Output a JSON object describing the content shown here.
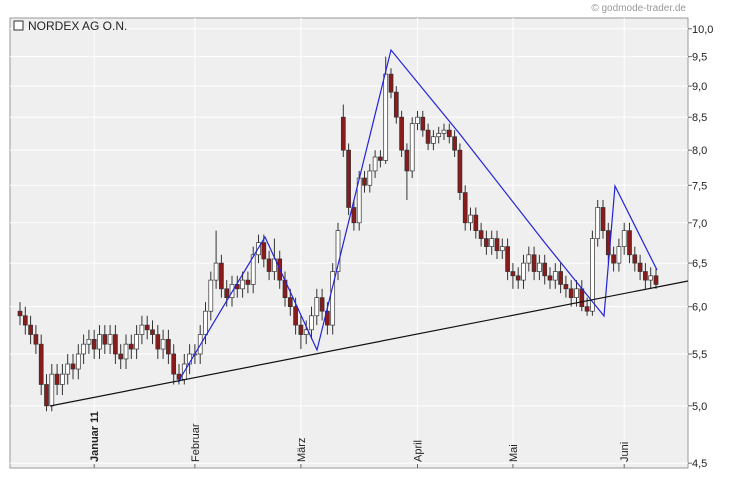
{
  "chart_data": {
    "type": "candlestick",
    "title": "NORDEX AG O.N.",
    "source": "© godmode-trader.de",
    "log_scale": true,
    "grid": true,
    "up_color": "#ffffff",
    "down_color": "#8b1a1a",
    "open": [
      5.95,
      5.9,
      5.8,
      5.7,
      5.6,
      5.2,
      5.0,
      5.3,
      5.2,
      5.3,
      5.4,
      5.35,
      5.5,
      5.6,
      5.65,
      5.55,
      5.7,
      5.6,
      5.7,
      5.5,
      5.45,
      5.6,
      5.55,
      5.7,
      5.8,
      5.75,
      5.7,
      5.55,
      5.65,
      5.5,
      5.3,
      5.25,
      5.4,
      5.5,
      5.5,
      5.7,
      5.95,
      6.3,
      6.5,
      6.2,
      6.1,
      6.25,
      6.2,
      6.3,
      6.25,
      6.6,
      6.75,
      6.55,
      6.4,
      6.55,
      6.3,
      6.1,
      6.0,
      5.8,
      5.7,
      5.75,
      5.9,
      6.1,
      5.95,
      5.8,
      6.4,
      8.5,
      8.0,
      7.2,
      7.0,
      7.6,
      7.5,
      7.7,
      7.9,
      7.85,
      9.2,
      8.9,
      8.5,
      8.0,
      7.7,
      8.4,
      8.5,
      8.3,
      8.1,
      8.2,
      8.25,
      8.3,
      8.2,
      8.0,
      7.4,
      7.0,
      7.1,
      6.9,
      6.8,
      6.7,
      6.8,
      6.65,
      6.7,
      6.4,
      6.35,
      6.3,
      6.5,
      6.6,
      6.4,
      6.5,
      6.35,
      6.3,
      6.4,
      6.25,
      6.2,
      6.1,
      6.2,
      6.0,
      5.95,
      6.8,
      7.2,
      6.9,
      6.6,
      6.5,
      6.7,
      6.9,
      6.6,
      6.5,
      6.4,
      6.3,
      6.35
    ],
    "high": [
      6.05,
      6.0,
      5.9,
      5.8,
      5.7,
      5.3,
      5.4,
      5.4,
      5.4,
      5.5,
      5.5,
      5.6,
      5.7,
      5.75,
      5.75,
      5.8,
      5.8,
      5.8,
      5.8,
      5.6,
      5.7,
      5.7,
      5.8,
      5.9,
      5.9,
      5.85,
      5.8,
      5.75,
      5.75,
      5.6,
      5.4,
      5.5,
      5.6,
      5.6,
      5.8,
      6.05,
      6.4,
      6.9,
      6.6,
      6.3,
      6.35,
      6.35,
      6.4,
      6.4,
      6.7,
      6.85,
      6.85,
      6.65,
      6.8,
      6.65,
      6.4,
      6.2,
      6.1,
      5.9,
      5.85,
      6.0,
      6.2,
      6.2,
      6.05,
      6.5,
      7.0,
      8.7,
      8.1,
      7.3,
      7.7,
      7.7,
      7.8,
      8.0,
      8.0,
      9.5,
      9.3,
      9.0,
      8.6,
      8.1,
      8.5,
      8.6,
      8.6,
      8.4,
      8.3,
      8.35,
      8.4,
      8.4,
      8.3,
      8.1,
      7.5,
      7.2,
      7.2,
      7.0,
      6.9,
      6.9,
      6.9,
      6.8,
      6.8,
      6.5,
      6.45,
      6.6,
      6.7,
      6.7,
      6.6,
      6.6,
      6.45,
      6.5,
      6.5,
      6.35,
      6.3,
      6.3,
      6.3,
      6.1,
      6.9,
      7.3,
      7.3,
      7.0,
      6.7,
      6.8,
      7.0,
      7.0,
      6.7,
      6.6,
      6.5,
      6.45,
      6.45
    ],
    "low": [
      5.8,
      5.7,
      5.6,
      5.5,
      5.1,
      4.95,
      4.95,
      5.1,
      5.1,
      5.2,
      5.25,
      5.25,
      5.4,
      5.5,
      5.45,
      5.45,
      5.5,
      5.5,
      5.4,
      5.35,
      5.35,
      5.45,
      5.45,
      5.6,
      5.65,
      5.6,
      5.45,
      5.45,
      5.4,
      5.2,
      5.2,
      5.2,
      5.3,
      5.4,
      5.4,
      5.6,
      5.85,
      6.2,
      6.1,
      6.0,
      6.0,
      6.1,
      6.1,
      6.15,
      6.15,
      6.5,
      6.45,
      6.3,
      6.3,
      6.2,
      6.0,
      5.9,
      5.7,
      5.55,
      5.6,
      5.65,
      5.8,
      5.85,
      5.7,
      5.7,
      6.3,
      7.9,
      7.1,
      6.9,
      6.9,
      7.4,
      7.4,
      7.6,
      7.75,
      7.8,
      8.8,
      8.4,
      7.9,
      7.3,
      7.6,
      8.3,
      8.2,
      8.0,
      8.0,
      8.1,
      8.15,
      8.1,
      7.9,
      7.3,
      6.9,
      6.9,
      6.8,
      6.7,
      6.6,
      6.6,
      6.55,
      6.55,
      6.3,
      6.2,
      6.2,
      6.2,
      6.4,
      6.3,
      6.3,
      6.25,
      6.2,
      6.2,
      6.15,
      6.1,
      6.0,
      6.0,
      5.95,
      5.9,
      5.9,
      6.7,
      6.8,
      6.5,
      6.4,
      6.4,
      6.6,
      6.5,
      6.4,
      6.3,
      6.2,
      6.2,
      6.2
    ],
    "close": [
      5.9,
      5.8,
      5.7,
      5.6,
      5.2,
      5.0,
      5.3,
      5.2,
      5.3,
      5.4,
      5.35,
      5.5,
      5.6,
      5.65,
      5.55,
      5.7,
      5.6,
      5.7,
      5.5,
      5.45,
      5.6,
      5.55,
      5.7,
      5.8,
      5.75,
      5.7,
      5.55,
      5.65,
      5.5,
      5.3,
      5.25,
      5.4,
      5.5,
      5.5,
      5.7,
      5.95,
      6.3,
      6.5,
      6.2,
      6.1,
      6.25,
      6.2,
      6.3,
      6.25,
      6.6,
      6.75,
      6.55,
      6.4,
      6.55,
      6.3,
      6.1,
      6.0,
      5.8,
      5.7,
      5.75,
      5.9,
      6.1,
      5.95,
      5.8,
      6.4,
      6.9,
      8.0,
      7.2,
      7.0,
      7.6,
      7.5,
      7.7,
      7.9,
      7.85,
      9.2,
      8.9,
      8.5,
      8.0,
      7.7,
      8.4,
      8.5,
      8.3,
      8.1,
      8.2,
      8.25,
      8.3,
      8.2,
      8.0,
      7.4,
      7.0,
      7.1,
      6.9,
      6.8,
      6.7,
      6.8,
      6.65,
      6.7,
      6.4,
      6.35,
      6.3,
      6.5,
      6.6,
      6.4,
      6.5,
      6.35,
      6.3,
      6.4,
      6.25,
      6.2,
      6.1,
      6.2,
      6.0,
      5.95,
      6.8,
      7.2,
      6.9,
      6.6,
      6.5,
      6.7,
      6.9,
      6.6,
      6.5,
      6.4,
      6.3,
      6.35,
      6.25
    ],
    "ylim": [
      4.46,
      10.2
    ],
    "yticks": [
      {
        "value": 4.5,
        "label": "4,5"
      },
      {
        "value": 5.0,
        "label": "5,0"
      },
      {
        "value": 5.5,
        "label": "5,5"
      },
      {
        "value": 6.0,
        "label": "6,0"
      },
      {
        "value": 6.5,
        "label": "6,5"
      },
      {
        "value": 7.0,
        "label": "7,0"
      },
      {
        "value": 7.5,
        "label": "7,5"
      },
      {
        "value": 8.0,
        "label": "8,0"
      },
      {
        "value": 8.5,
        "label": "8,5"
      },
      {
        "value": 9.0,
        "label": "9,0"
      },
      {
        "value": 9.5,
        "label": "9,5"
      },
      {
        "value": 10.0,
        "label": "10,0"
      }
    ],
    "xticks": [
      {
        "value": 14,
        "label": "Januar 11"
      },
      {
        "value": 33,
        "label": "Februar"
      },
      {
        "value": 53,
        "label": "März"
      },
      {
        "value": 75,
        "label": "April"
      },
      {
        "value": 93,
        "label": "Mai"
      },
      {
        "value": 114,
        "label": "Juni"
      }
    ]
  }
}
